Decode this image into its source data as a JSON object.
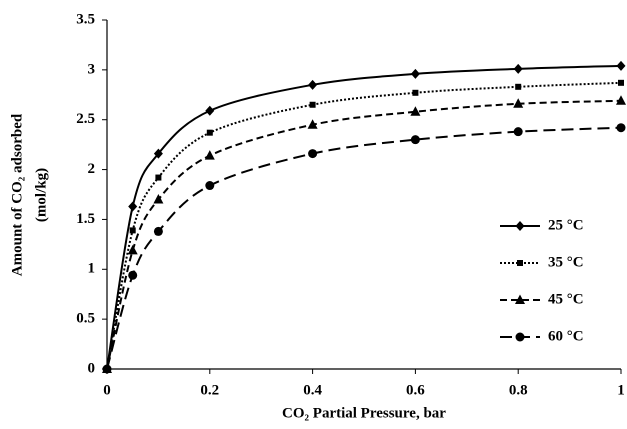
{
  "chart_data": {
    "type": "line",
    "x_label": "CO₂ Partial Pressure, bar",
    "y_label": [
      "Amount  of CO₂ adsorbed",
      "(mol/kg)"
    ],
    "x": [
      0,
      0.05,
      0.1,
      0.2,
      0.4,
      0.6,
      0.8,
      1
    ],
    "series": [
      {
        "name": "25 °C",
        "color": "#000000",
        "marker": "diamond",
        "dash": "solid",
        "values": [
          0,
          1.63,
          2.16,
          2.59,
          2.85,
          2.96,
          3.01,
          3.04
        ]
      },
      {
        "name": "35 °C",
        "color": "#000000",
        "marker": "square",
        "dash": "dotted",
        "values": [
          0,
          1.39,
          1.92,
          2.37,
          2.65,
          2.77,
          2.83,
          2.87
        ]
      },
      {
        "name": "45 °C",
        "color": "#000000",
        "marker": "triangle",
        "dash": "dashed",
        "values": [
          0,
          1.19,
          1.7,
          2.14,
          2.45,
          2.58,
          2.66,
          2.69
        ]
      },
      {
        "name": "60 °C",
        "color": "#000000",
        "marker": "circle",
        "dash": "longdash",
        "values": [
          0,
          0.94,
          1.38,
          1.84,
          2.16,
          2.3,
          2.38,
          2.42
        ]
      }
    ],
    "xlim": [
      0,
      1
    ],
    "xticks": [
      0,
      0.2,
      0.4,
      0.6,
      0.8,
      1
    ],
    "ylim": [
      0,
      3.5
    ],
    "yticks": [
      0,
      0.5,
      1,
      1.5,
      2,
      2.5,
      3,
      3.5
    ],
    "grid": false,
    "legend": "right"
  }
}
